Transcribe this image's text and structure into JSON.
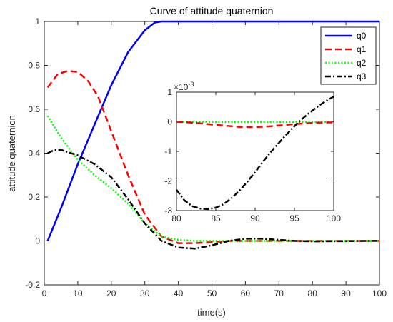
{
  "chart_data": {
    "type": "line",
    "title": "Curve of attitude quaternion",
    "xlabel": "time(s)",
    "ylabel": "attitude quaternion",
    "xlim": [
      0,
      100
    ],
    "ylim": [
      -0.2,
      1
    ],
    "x_ticks": [
      "0",
      "10",
      "20",
      "30",
      "40",
      "50",
      "60",
      "70",
      "80",
      "90",
      "100"
    ],
    "y_ticks": [
      "-0.2",
      "0",
      "0.2",
      "0.4",
      "0.6",
      "0.8",
      "1"
    ],
    "legend_position": "top-right",
    "series": [
      {
        "name": "q0",
        "color": "#0000ff",
        "dash": "solid",
        "x": [
          1,
          5,
          10,
          15,
          20,
          25,
          30,
          33,
          35,
          40,
          50,
          60,
          70,
          80,
          90,
          100
        ],
        "y": [
          0.0,
          0.15,
          0.35,
          0.53,
          0.71,
          0.86,
          0.96,
          0.995,
          1.0,
          1.0,
          1.0,
          1.0,
          1.0,
          1.0,
          1.0,
          1.0
        ]
      },
      {
        "name": "q1",
        "color": "#ff0000",
        "dash": "dashed",
        "x": [
          1,
          4,
          7,
          10,
          13,
          16,
          20,
          25,
          30,
          35,
          40,
          45,
          50,
          55,
          60,
          70,
          80,
          90,
          100
        ],
        "y": [
          0.7,
          0.76,
          0.775,
          0.77,
          0.73,
          0.66,
          0.5,
          0.3,
          0.12,
          0.02,
          -0.01,
          -0.01,
          -0.005,
          0.0,
          0.0,
          0.0,
          0.0,
          0.0,
          0.0
        ]
      },
      {
        "name": "q2",
        "color": "#00ff00",
        "dash": "dotted",
        "x": [
          1,
          5,
          10,
          15,
          20,
          25,
          30,
          35,
          40,
          45,
          50,
          60,
          70,
          80,
          90,
          100
        ],
        "y": [
          0.57,
          0.47,
          0.37,
          0.3,
          0.24,
          0.17,
          0.08,
          0.02,
          0.005,
          0.0,
          0.0,
          0.0,
          0.0,
          0.0,
          0.0,
          0.0
        ]
      },
      {
        "name": "q3",
        "color": "#000000",
        "dash": "dashdot",
        "x": [
          1,
          3,
          5,
          10,
          15,
          20,
          25,
          30,
          35,
          40,
          45,
          50,
          55,
          60,
          65,
          70,
          75,
          80,
          90,
          100
        ],
        "y": [
          0.4,
          0.415,
          0.415,
          0.39,
          0.35,
          0.29,
          0.19,
          0.08,
          0.0,
          -0.03,
          -0.035,
          -0.02,
          0.0,
          0.01,
          0.01,
          0.005,
          0.0,
          -0.002,
          -0.001,
          0.0008
        ]
      }
    ],
    "inset": {
      "xlim": [
        80,
        100
      ],
      "ylim": [
        -3,
        1
      ],
      "y_multiplier": "×10",
      "y_multiplier_exponent": "-3",
      "x_ticks": [
        "80",
        "85",
        "90",
        "95",
        "100"
      ],
      "y_ticks": [
        "-3",
        "-2",
        "-1",
        "0",
        "1"
      ],
      "series": [
        {
          "name": "q1",
          "x": [
            80,
            82,
            84,
            86,
            88,
            90,
            92,
            94,
            96,
            98,
            100
          ],
          "y": [
            0.0,
            -0.03,
            -0.08,
            -0.13,
            -0.17,
            -0.18,
            -0.15,
            -0.1,
            -0.06,
            -0.03,
            -0.02
          ]
        },
        {
          "name": "q2",
          "x": [
            80,
            85,
            90,
            95,
            100
          ],
          "y": [
            0.0,
            -0.01,
            -0.01,
            -0.01,
            -0.01
          ]
        },
        {
          "name": "q3",
          "x": [
            80,
            81,
            82,
            83,
            84,
            85,
            86,
            87,
            88,
            89,
            90,
            91,
            92,
            93,
            94,
            95,
            96,
            97,
            98,
            99,
            100
          ],
          "y": [
            -2.3,
            -2.65,
            -2.85,
            -2.93,
            -2.95,
            -2.9,
            -2.78,
            -2.58,
            -2.33,
            -2.03,
            -1.7,
            -1.35,
            -1.02,
            -0.72,
            -0.43,
            -0.15,
            0.1,
            0.32,
            0.52,
            0.7,
            0.85
          ]
        }
      ]
    }
  }
}
